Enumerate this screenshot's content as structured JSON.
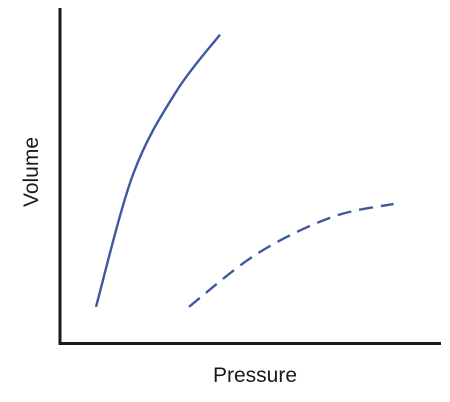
{
  "chart_data": {
    "type": "line",
    "title": "",
    "xlabel": "Pressure",
    "ylabel": "Volume",
    "x_ticks": [],
    "y_ticks": [],
    "grid": false,
    "legend": "none",
    "series": [
      {
        "style": "solid",
        "color": "#3f59a0",
        "points": [
          [
            1.0,
            1.0
          ],
          [
            2.2,
            5.0
          ],
          [
            3.6,
            7.5
          ],
          [
            5.0,
            9.2
          ]
        ]
      },
      {
        "style": "dashed",
        "color": "#3f59a0",
        "points": [
          [
            4.0,
            1.0
          ],
          [
            6.2,
            2.6
          ],
          [
            8.6,
            3.7
          ],
          [
            10.6,
            4.1
          ]
        ]
      }
    ],
    "xlim": [
      0,
      12
    ],
    "ylim": [
      0,
      10
    ]
  }
}
